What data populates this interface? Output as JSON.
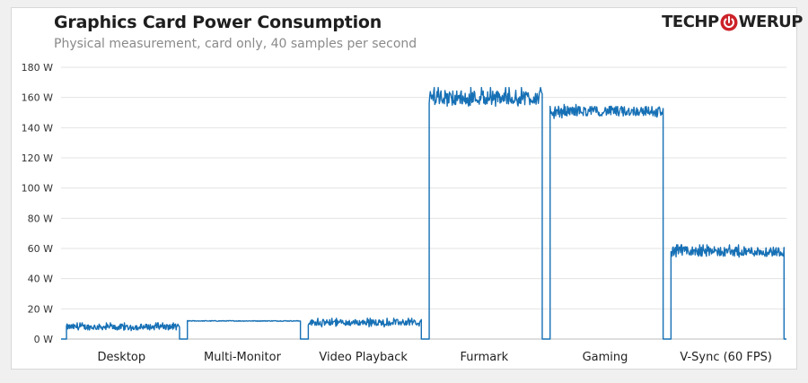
{
  "logo": {
    "left": "TECHP",
    "right": "WERUP"
  },
  "chart_data": {
    "type": "line",
    "title": "Graphics Card Power Consumption",
    "subtitle": "Physical measurement, card only, 40 samples per second",
    "ylim": [
      0,
      180
    ],
    "yticks": [
      0,
      20,
      40,
      60,
      80,
      100,
      120,
      140,
      160,
      180
    ],
    "ytick_labels": [
      "0 W",
      "20 W",
      "40 W",
      "60 W",
      "80 W",
      "100 W",
      "120 W",
      "140 W",
      "160 W",
      "180 W"
    ],
    "grid": true,
    "color": "#1670b5",
    "segments": [
      {
        "label": "Desktop",
        "level": 8,
        "noise": 2.5,
        "low": 6.5
      },
      {
        "label": "Multi-Monitor",
        "level": 12,
        "noise": 0.5,
        "low": 11.5
      },
      {
        "label": "Video Playback",
        "level": 11,
        "noise": 2.5,
        "low": 9
      },
      {
        "label": "Furmark",
        "level": 160,
        "noise": 6,
        "low": 155
      },
      {
        "label": "Gaming",
        "level": 151,
        "noise": 4,
        "low": 147
      },
      {
        "label": "V-Sync (60 FPS)",
        "level": 58,
        "noise": 4,
        "low": 55
      }
    ]
  }
}
